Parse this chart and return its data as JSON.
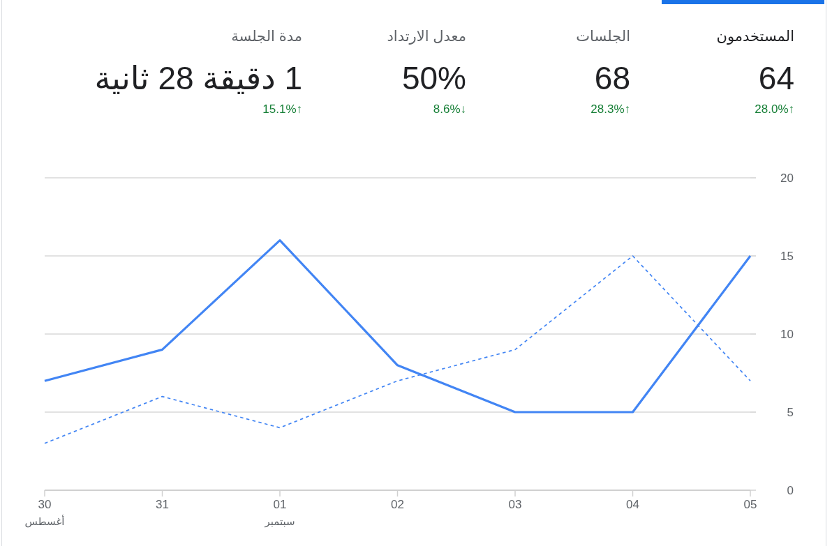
{
  "chart_data": [
    {
      "type": "other",
      "annotations": [
        "المستخدمون",
        "64",
        "28.0%↑",
        "الجلسات",
        "68",
        "28.3%↑",
        "معدل الارتداد",
        "50%",
        "8.6%↓",
        "مدة الجلسة",
        "1 دقيقة 28 ثانية",
        "15.1%↑"
      ]
    },
    {
      "type": "line",
      "categories": [
        "30\nأغسطس",
        "31",
        "01\nسبتمبر",
        "02",
        "03",
        "04",
        "05"
      ],
      "series": [
        {
          "color": "#4285f4",
          "line_style": "solid",
          "values": [
            7,
            9,
            16,
            8,
            5,
            5,
            15
          ]
        },
        {
          "color": "#4285f4",
          "line_style": "dashed",
          "values": [
            3,
            6,
            4,
            7,
            9,
            15,
            7
          ]
        }
      ],
      "ylim": [
        0,
        20
      ],
      "yticks": [
        0,
        5,
        10,
        15,
        20
      ],
      "grid": "y"
    }
  ]
}
